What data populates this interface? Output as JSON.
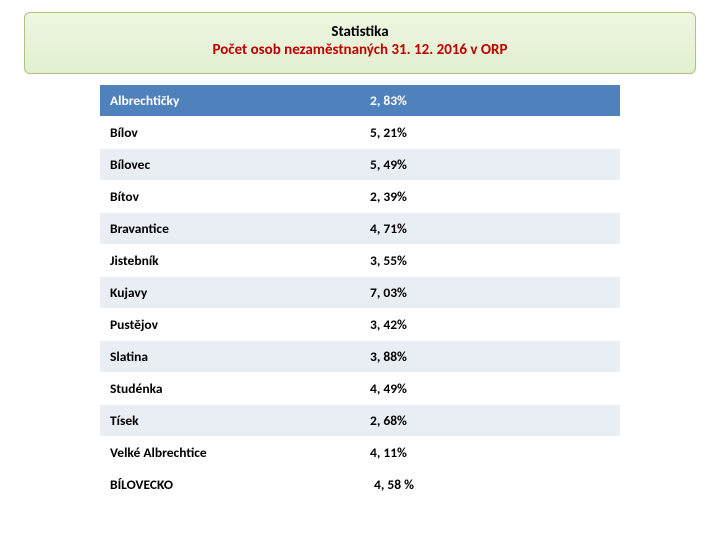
{
  "title": {
    "line1": "Statistika",
    "line2": "Počet osob nezaměstnaných 31. 12. 2016 v ORP",
    "line1_color": "#000000",
    "line2_color": "#c00000",
    "box_bg_top": "#eef6e2",
    "box_bg_bottom": "#e2efcf",
    "box_border_color": "#a9c47f"
  },
  "table": {
    "header_bg": "#4f81bd",
    "row_alt_bg": "#e9edf4",
    "row_bg": "#ffffff",
    "text_color": "#000000",
    "header_text_color": "#ffffff",
    "total_bg": "#ffffff",
    "columns": [
      "name",
      "value"
    ],
    "header": {
      "name": "Albrechtičky",
      "value": "2, 83%"
    },
    "rows": [
      {
        "name": "Bílov",
        "value": "5, 21%"
      },
      {
        "name": "Bílovec",
        "value": "5, 49%"
      },
      {
        "name": "Bítov",
        "value": "2, 39%"
      },
      {
        "name": "Bravantice",
        "value": "4, 71%"
      },
      {
        "name": "Jistebník",
        "value": "3, 55%"
      },
      {
        "name": "Kujavy",
        "value": "7, 03%"
      },
      {
        "name": "Pustějov",
        "value": "3, 42%"
      },
      {
        "name": "Slatina",
        "value": "3, 88%"
      },
      {
        "name": "Studénka",
        "value": "4, 49%"
      },
      {
        "name": "Tísek",
        "value": "2, 68%"
      },
      {
        "name": "Velké Albrechtice",
        "value": "4, 11%"
      }
    ],
    "total": {
      "name": "BÍLOVECKO",
      "value": "4, 58 %"
    }
  }
}
